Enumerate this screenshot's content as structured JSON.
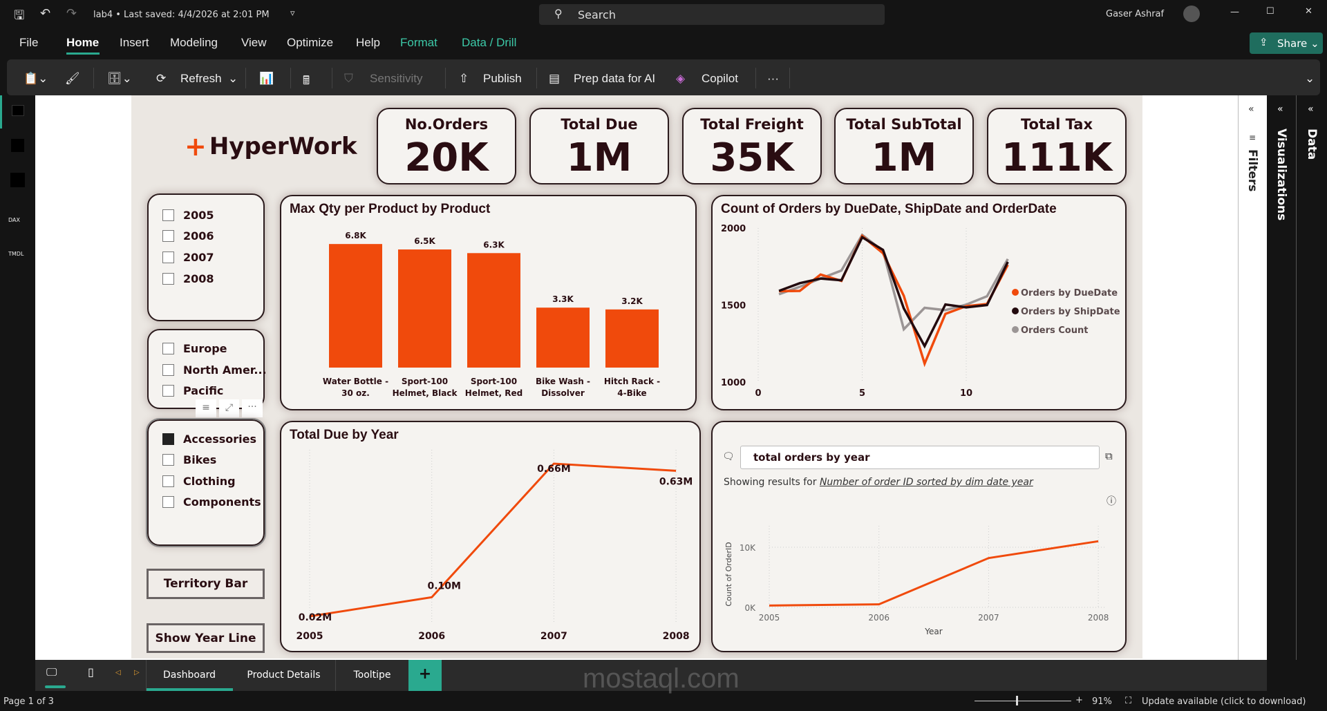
{
  "titlebar": {
    "file_title": "lab4 • Last saved: 4/4/2026 at 2:01 PM",
    "search_placeholder": "Search",
    "user": "Gaser Ashraf"
  },
  "menu": {
    "items": [
      "File",
      "Home",
      "Insert",
      "Modeling",
      "View",
      "Optimize",
      "Help",
      "Format",
      "Data / Drill"
    ],
    "active": "Home",
    "share": "Share"
  },
  "toolbar": {
    "refresh": "Refresh",
    "sensitivity": "Sensitivity",
    "publish": "Publish",
    "prep": "Prep data for AI",
    "copilot": "Copilot",
    "more": "···"
  },
  "panes": {
    "filters": "Filters",
    "visualizations": "Visualizations",
    "data": "Data"
  },
  "report": {
    "logo": "HyperWork",
    "cards": [
      {
        "title": "No.Orders",
        "value": "20K"
      },
      {
        "title": "Total Due",
        "value": "1M"
      },
      {
        "title": "Total Freight",
        "value": "35K"
      },
      {
        "title": "Total SubTotal",
        "value": "1M"
      },
      {
        "title": "Total Tax",
        "value": "111K"
      }
    ],
    "slicer_years": [
      "2005",
      "2006",
      "2007",
      "2008"
    ],
    "slicer_regions": [
      "Europe",
      "North Amer...",
      "Pacific"
    ],
    "slicer_categories": [
      {
        "label": "Accessories",
        "checked": true
      },
      {
        "label": "Bikes",
        "checked": false
      },
      {
        "label": "Clothing",
        "checked": false
      },
      {
        "label": "Components",
        "checked": false
      }
    ],
    "buttons": {
      "territory": "Territory Bar",
      "year_line": "Show Year Line"
    },
    "qna": {
      "query": "total orders by year",
      "showing_prefix": "Showing results for ",
      "showing_result": "Number of order ID sorted by dim date year"
    }
  },
  "colors": {
    "orange": "#f04a0c",
    "dark": "#230a0e",
    "gray": "#9b9595",
    "accent": "#2aa98f"
  },
  "chart_data": [
    {
      "type": "bar",
      "title": "Max Qty per Product by Product",
      "categories": [
        "Water Bottle - 30 oz.",
        "Sport-100 Helmet, Black",
        "Sport-100 Helmet, Red",
        "Bike Wash - Dissolver",
        "Hitch Rack - 4-Bike"
      ],
      "values": [
        6.8,
        6.5,
        6.3,
        3.3,
        3.2
      ],
      "data_labels": [
        "6.8K",
        "6.5K",
        "6.3K",
        "3.3K",
        "3.2K"
      ]
    },
    {
      "type": "line",
      "title": "Count of Orders by DueDate, ShipDate and OrderDate",
      "x": [
        1,
        2,
        3,
        4,
        5,
        6,
        7,
        8,
        9,
        10,
        11,
        12
      ],
      "xticks": [
        "0",
        "5",
        "10"
      ],
      "yticks": [
        "1000",
        "1500",
        "2000"
      ],
      "ylim": [
        1000,
        2000
      ],
      "legend": "right",
      "series": [
        {
          "name": "Orders by DueDate",
          "values": [
            1590,
            1592,
            1698,
            1657,
            1948,
            1836,
            1560,
            1120,
            1443,
            1493,
            1507,
            1761
          ]
        },
        {
          "name": "Orders by ShipDate",
          "values": [
            1592,
            1642,
            1672,
            1661,
            1940,
            1858,
            1478,
            1234,
            1504,
            1485,
            1500,
            1780
          ]
        },
        {
          "name": "Orders Count",
          "values": [
            1570,
            1619,
            1672,
            1724,
            1955,
            1851,
            1343,
            1482,
            1467,
            1503,
            1557,
            1799
          ]
        }
      ]
    },
    {
      "type": "line",
      "title": "Total Due by Year",
      "categories": [
        "2005",
        "2006",
        "2007",
        "2008"
      ],
      "values": [
        0.02,
        0.1,
        0.66,
        0.63
      ],
      "data_labels": [
        "0.02M",
        "0.10M",
        "0.66M",
        "0.63M"
      ]
    },
    {
      "type": "line",
      "categories": [
        "2005",
        "2006",
        "2007",
        "2008"
      ],
      "values": [
        300,
        500,
        8200,
        11000
      ],
      "xlabel": "Year",
      "ylabel": "Count of OrderID",
      "yticks": [
        "0K",
        "10K"
      ]
    }
  ],
  "tabs": {
    "pages": [
      "Dashboard",
      "Product Details",
      "Tooltipe"
    ],
    "active": "Dashboard",
    "add": "+"
  },
  "status": {
    "page": "Page 1 of 3",
    "zoom": "91%",
    "zoom_level": 0.91,
    "update": "Update available (click to download)"
  }
}
